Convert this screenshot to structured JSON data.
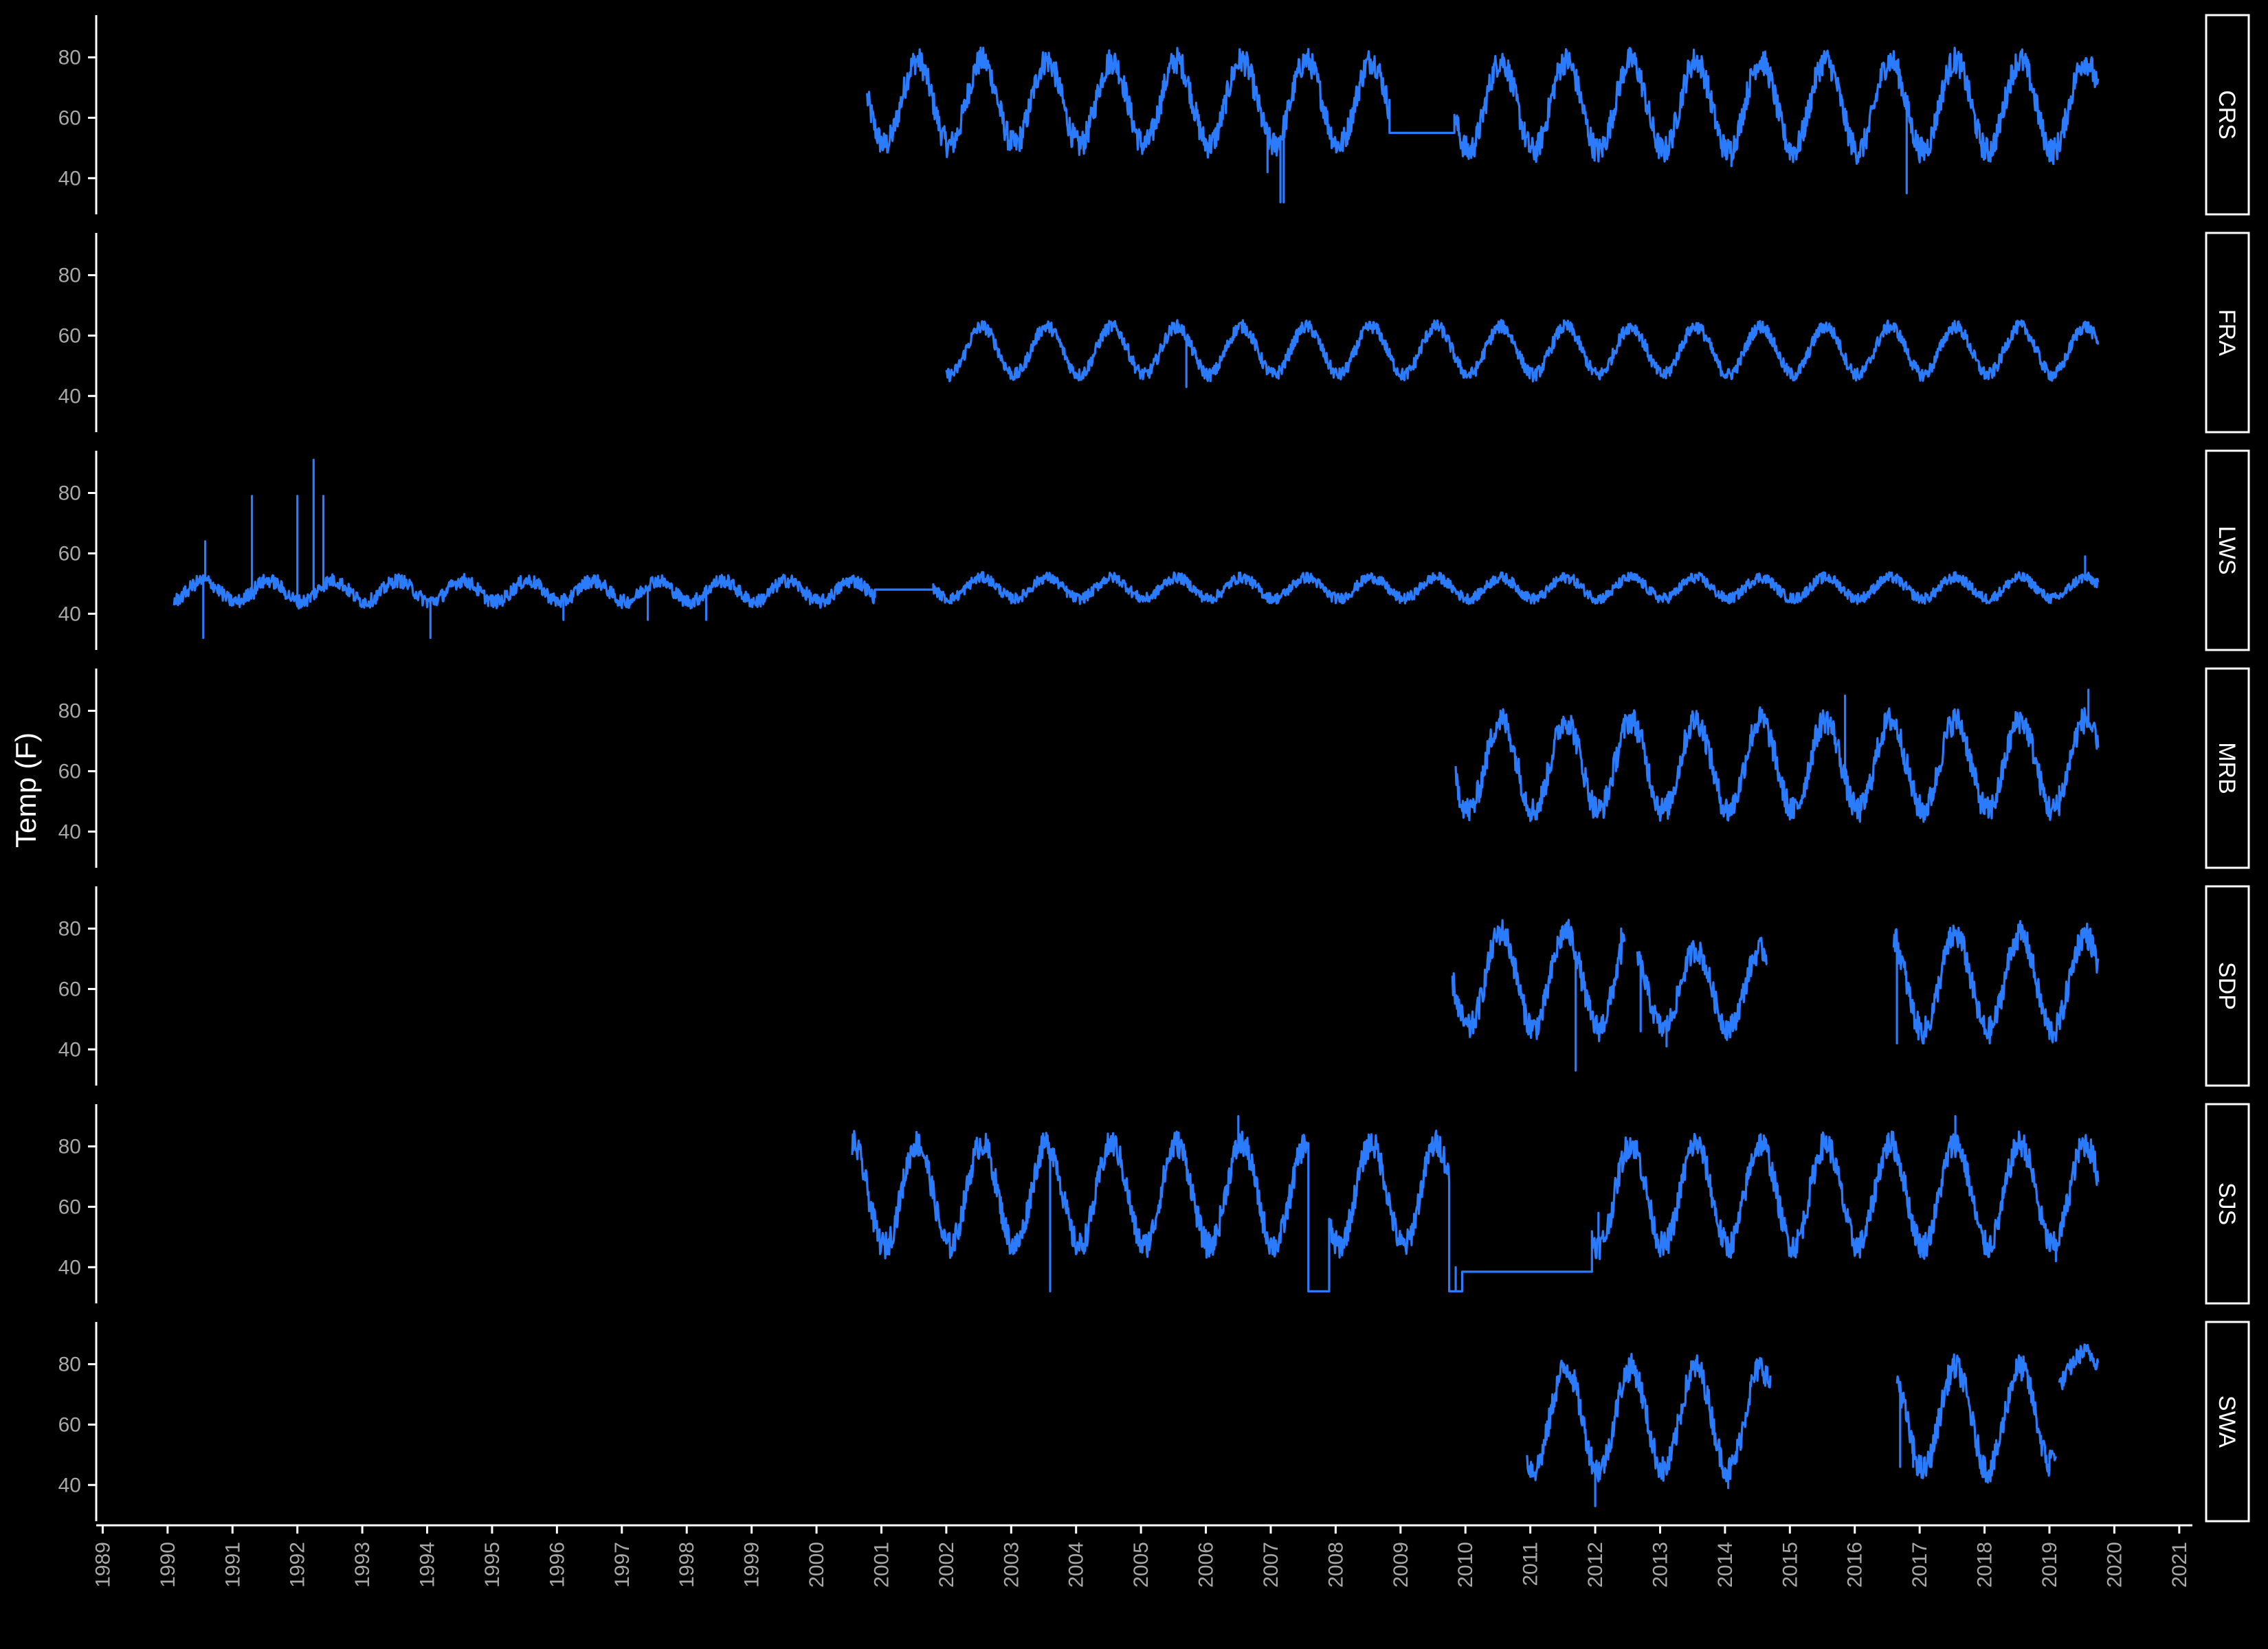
{
  "chart_data": {
    "type": "line",
    "layout": "facet_grid_rows",
    "ylabel": "Temp (F)",
    "xlabel": "",
    "x_ticks": [
      "1989",
      "1990",
      "1991",
      "1992",
      "1993",
      "1994",
      "1995",
      "1996",
      "1997",
      "1998",
      "1999",
      "2000",
      "2001",
      "2002",
      "2003",
      "2004",
      "2005",
      "2006",
      "2007",
      "2008",
      "2009",
      "2010",
      "2011",
      "2012",
      "2013",
      "2014",
      "2015",
      "2016",
      "2017",
      "2018",
      "2019",
      "2020",
      "2021"
    ],
    "xlim": [
      1988.9,
      2021.15
    ],
    "y_ticks": [
      40,
      60,
      80
    ],
    "ylim": [
      28,
      94
    ],
    "line_color": "#2b7bff",
    "grid": false,
    "panels": [
      {
        "name": "CRS",
        "segments": [
          {
            "start": 2000.78,
            "end": 2008.83,
            "mean": 65,
            "amp": 14,
            "noise": 4.5,
            "spikes": [
              [
                2007.15,
                32
              ],
              [
                2007.2,
                32
              ],
              [
                2006.95,
                42
              ]
            ]
          },
          {
            "start": 2008.83,
            "end": 2009.83,
            "mean": 55,
            "amp": 0,
            "noise": 0,
            "spikes": []
          },
          {
            "start": 2009.83,
            "end": 2019.75,
            "mean": 64,
            "amp": 15,
            "noise": 4.5,
            "spikes": [
              [
                2014.1,
                44
              ],
              [
                2016.8,
                35
              ],
              [
                2016.7,
                74
              ]
            ]
          }
        ]
      },
      {
        "name": "FRA",
        "segments": [
          {
            "start": 2002.0,
            "end": 2019.75,
            "mean": 55,
            "amp": 8,
            "noise": 2.2,
            "spikes": [
              [
                2005.7,
                43
              ]
            ]
          }
        ]
      },
      {
        "name": "LWS",
        "segments": [
          {
            "start": 1990.1,
            "end": 2000.9,
            "mean": 47.5,
            "amp": 3.5,
            "noise": 2.3,
            "spikes": [
              [
                1990.55,
                32
              ],
              [
                1990.58,
                64
              ],
              [
                1991.3,
                79
              ],
              [
                1991.33,
                45
              ],
              [
                1992.0,
                79
              ],
              [
                1992.25,
                91
              ],
              [
                1992.4,
                79
              ],
              [
                1994.05,
                32
              ],
              [
                1996.1,
                38
              ],
              [
                1997.4,
                38
              ],
              [
                1998.3,
                38
              ]
            ]
          },
          {
            "start": 2000.9,
            "end": 2001.8,
            "mean": 48,
            "amp": 0,
            "noise": 0,
            "spikes": []
          },
          {
            "start": 2001.8,
            "end": 2019.75,
            "mean": 48.5,
            "amp": 3.5,
            "noise": 1.8,
            "spikes": [
              [
                2019.55,
                59
              ]
            ]
          }
        ]
      },
      {
        "name": "MRB",
        "segments": [
          {
            "start": 2009.85,
            "end": 2019.75,
            "mean": 62,
            "amp": 15,
            "noise": 4.5,
            "spikes": [
              [
                2015.85,
                85
              ],
              [
                2019.6,
                87
              ],
              [
                2019.15,
                55
              ]
            ]
          }
        ]
      },
      {
        "name": "SDP",
        "segments": [
          {
            "start": 2009.8,
            "end": 2012.45,
            "mean": 63,
            "amp": 16,
            "noise": 4.5,
            "spikes": [
              [
                2011.7,
                33
              ],
              [
                2012.4,
                80
              ]
            ]
          },
          {
            "start": 2012.65,
            "end": 2014.65,
            "mean": 60,
            "amp": 13,
            "noise": 4,
            "spikes": [
              [
                2012.7,
                46
              ],
              [
                2013.1,
                41
              ]
            ]
          },
          {
            "start": 2016.6,
            "end": 2019.75,
            "mean": 62,
            "amp": 16,
            "noise": 4.5,
            "spikes": [
              [
                2016.65,
                42
              ],
              [
                2016.62,
                78
              ]
            ]
          }
        ]
      },
      {
        "name": "SJS",
        "segments": [
          {
            "start": 2000.55,
            "end": 2007.58,
            "mean": 64,
            "amp": 17,
            "noise": 4.5,
            "spikes": [
              [
                2003.6,
                32
              ],
              [
                2006.5,
                90
              ]
            ]
          },
          {
            "start": 2007.58,
            "end": 2007.9,
            "mean": 32,
            "amp": 0,
            "noise": 0,
            "spikes": []
          },
          {
            "start": 2007.9,
            "end": 2009.75,
            "mean": 64,
            "amp": 17,
            "noise": 4.5,
            "spikes": []
          },
          {
            "start": 2009.75,
            "end": 2009.95,
            "mean": 32,
            "amp": 0,
            "noise": 0,
            "spikes": [
              [
                2009.85,
                40
              ]
            ]
          },
          {
            "start": 2009.95,
            "end": 2011.95,
            "mean": 38.5,
            "amp": 0,
            "noise": 0,
            "spikes": []
          },
          {
            "start": 2011.95,
            "end": 2019.75,
            "mean": 64,
            "amp": 17,
            "noise": 4.5,
            "spikes": [
              [
                2012.05,
                58
              ],
              [
                2017.55,
                90
              ],
              [
                2019.1,
                42
              ]
            ]
          }
        ]
      },
      {
        "name": "SWA",
        "segments": [
          {
            "start": 2010.95,
            "end": 2014.7,
            "mean": 62,
            "amp": 17,
            "noise": 4.5,
            "spikes": [
              [
                2012.0,
                33
              ],
              [
                2014.05,
                39
              ]
            ]
          },
          {
            "start": 2016.65,
            "end": 2019.0,
            "mean": 62,
            "amp": 17,
            "noise": 4.5,
            "spikes": [
              [
                2016.7,
                46
              ],
              [
                2016.9,
                46
              ]
            ]
          },
          {
            "start": 2019.0,
            "end": 2019.1,
            "mean": 50,
            "amp": 0,
            "noise": 2,
            "spikes": []
          },
          {
            "start": 2019.15,
            "end": 2019.75,
            "mean": 78,
            "amp": 6,
            "noise": 3,
            "spikes": []
          }
        ]
      }
    ]
  }
}
